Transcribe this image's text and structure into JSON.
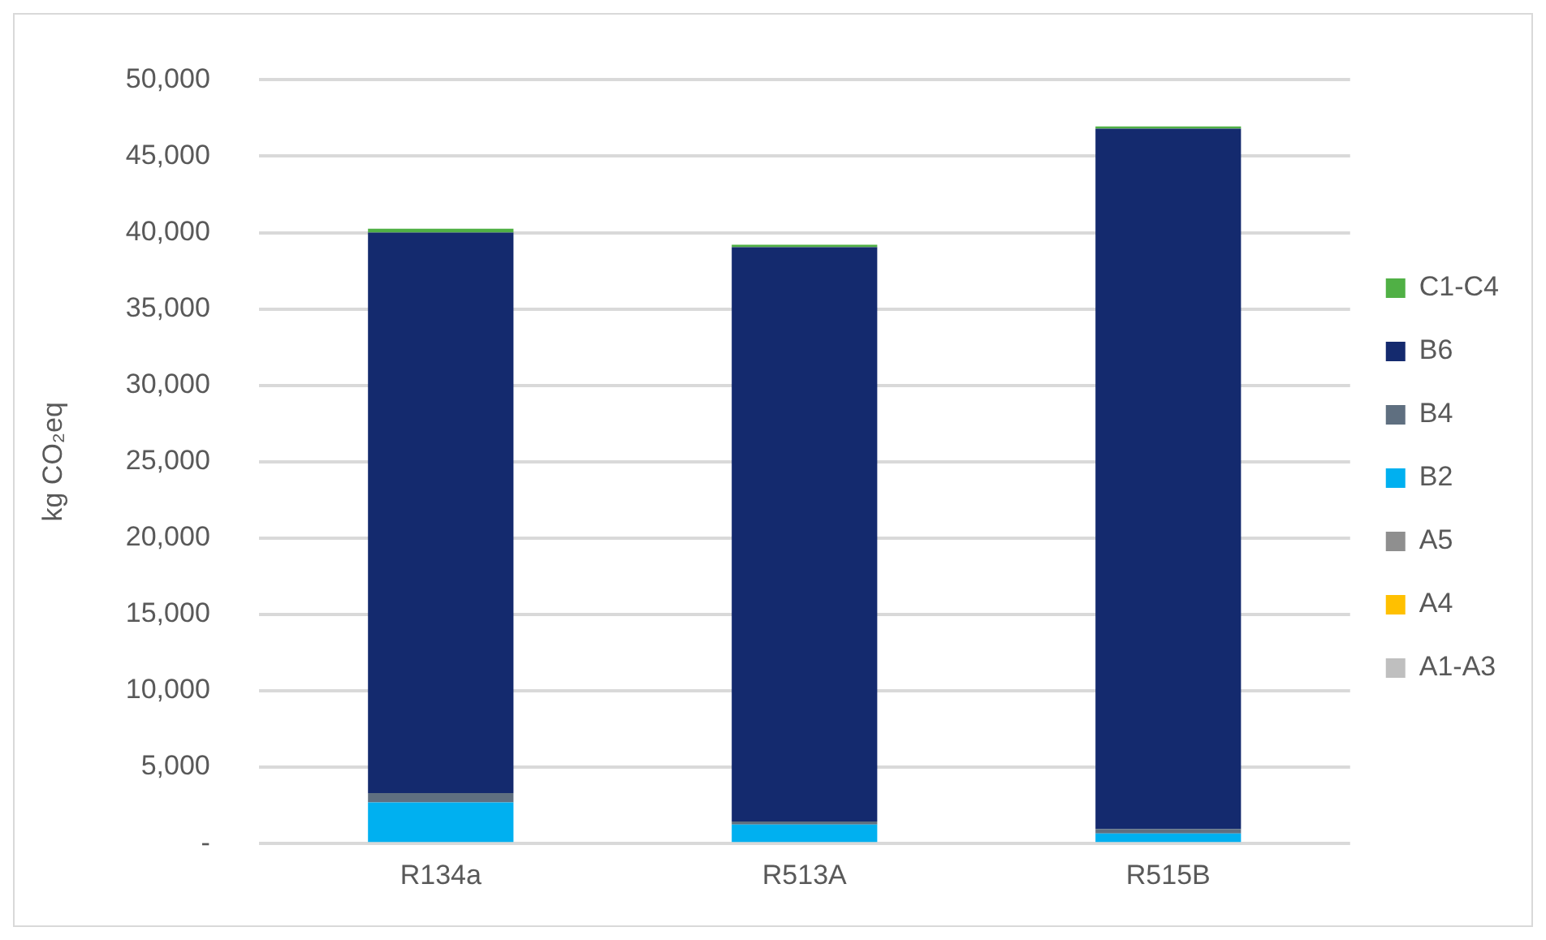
{
  "chart_data": {
    "type": "bar",
    "stacked": true,
    "categories": [
      "R134a",
      "R513A",
      "R515B"
    ],
    "ylabel": "kg CO₂eq",
    "ylim": [
      0,
      50000
    ],
    "yticks": [
      {
        "value": 0,
        "label": "-"
      },
      {
        "value": 5000,
        "label": "5,000"
      },
      {
        "value": 10000,
        "label": "10,000"
      },
      {
        "value": 15000,
        "label": "15,000"
      },
      {
        "value": 20000,
        "label": "20,000"
      },
      {
        "value": 25000,
        "label": "25,000"
      },
      {
        "value": 30000,
        "label": "30,000"
      },
      {
        "value": 35000,
        "label": "35,000"
      },
      {
        "value": 40000,
        "label": "40,000"
      },
      {
        "value": 45000,
        "label": "45,000"
      },
      {
        "value": 50000,
        "label": "50,000"
      }
    ],
    "grid": "y",
    "legend": "right",
    "series": [
      {
        "name": "A1-A3",
        "color": "#bfbfbf",
        "values": [
          0,
          0,
          0
        ]
      },
      {
        "name": "A4",
        "color": "#ffc000",
        "values": [
          0,
          0,
          0
        ]
      },
      {
        "name": "A5",
        "color": "#8f8f8f",
        "values": [
          0,
          0,
          0
        ]
      },
      {
        "name": "B2",
        "color": "#00b0f0",
        "values": [
          2700,
          1240,
          660
        ]
      },
      {
        "name": "B4",
        "color": "#5f6f80",
        "values": [
          600,
          210,
          290
        ]
      },
      {
        "name": "B6",
        "color": "#142a6e",
        "values": [
          36700,
          37600,
          45850
        ]
      },
      {
        "name": "C1-C4",
        "color": "#50b045",
        "values": [
          250,
          150,
          150
        ]
      }
    ]
  }
}
